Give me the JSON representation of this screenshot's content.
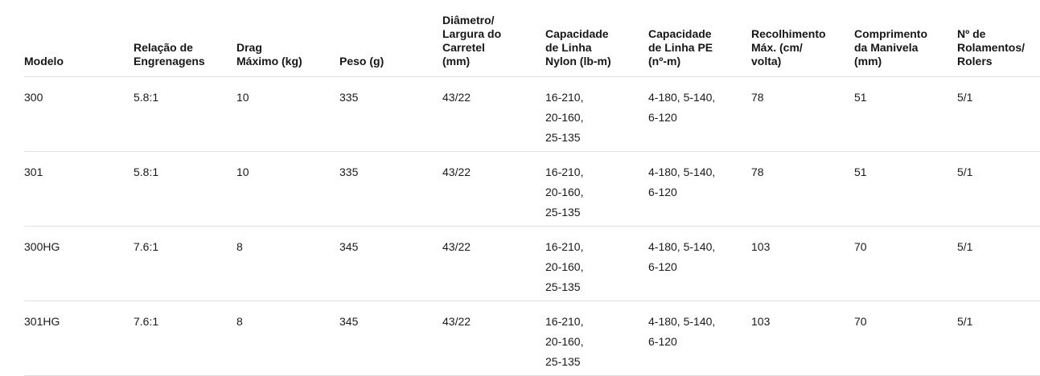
{
  "table": {
    "columns": [
      "Modelo",
      "Relação de\nEngrenagens",
      "Drag\nMáximo (kg)",
      "Peso (g)",
      "Diâmetro/\nLargura do\nCarretel\n(mm)",
      "Capacidade\nde Linha\nNylon (lb-m)",
      "Capacidade\nde Linha PE\n(nº-m)",
      "Recolhimento\nMáx. (cm/\nvolta)",
      "Comprimento\nda Manivela\n(mm)",
      "Nº de\nRolamentos/\nRolers"
    ],
    "rows": [
      {
        "model": "300",
        "cells": [
          "300",
          "5.8:1",
          "10",
          "335",
          "43/22",
          "16-210,\n20-160,\n25-135",
          "4-180, 5-140,\n6-120",
          "78",
          "51",
          "5/1"
        ]
      },
      {
        "model": "301",
        "cells": [
          "301",
          "5.8:1",
          "10",
          "335",
          "43/22",
          "16-210,\n20-160,\n25-135",
          "4-180, 5-140,\n6-120",
          "78",
          "51",
          "5/1"
        ]
      },
      {
        "model": "300HG",
        "cells": [
          "300HG",
          "7.6:1",
          "8",
          "345",
          "43/22",
          "16-210,\n20-160,\n25-135",
          "4-180, 5-140,\n6-120",
          "103",
          "70",
          "5/1"
        ]
      },
      {
        "model": "301HG",
        "cells": [
          "301HG",
          "7.6:1",
          "8",
          "345",
          "43/22",
          "16-210,\n20-160,\n25-135",
          "4-180, 5-140,\n6-120",
          "103",
          "70",
          "5/1"
        ]
      }
    ]
  },
  "colors": {
    "text": "#1a1a1a",
    "header_text": "#161616",
    "border": "#e0e0e0",
    "background": "#ffffff"
  }
}
